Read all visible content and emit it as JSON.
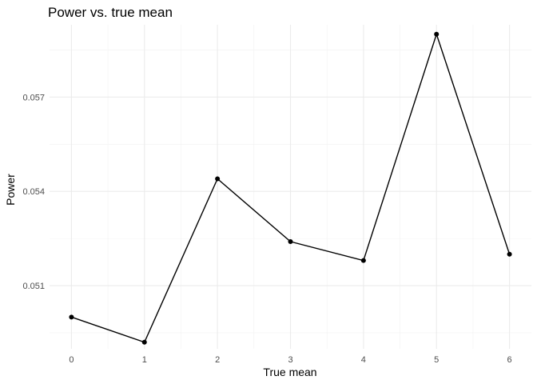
{
  "chart_data": {
    "type": "line",
    "title": "Power vs. true mean",
    "xlabel": "True mean",
    "ylabel": "Power",
    "x": [
      0,
      1,
      2,
      3,
      4,
      5,
      6
    ],
    "series": [
      {
        "values": [
          0.05,
          0.0492,
          0.0544,
          0.0524,
          0.0518,
          0.059,
          0.052
        ]
      }
    ],
    "xlim": [
      -0.3,
      6.3
    ],
    "ylim": [
      0.04899,
      0.0593
    ],
    "x_ticks": [
      "0",
      "1",
      "2",
      "3",
      "4",
      "5",
      "6"
    ],
    "y_ticks": [
      "0.051",
      "0.054",
      "0.057"
    ],
    "y_tick_values": [
      0.051,
      0.054,
      0.057
    ],
    "grid": true,
    "legend": "none",
    "line_color": "#000000"
  }
}
